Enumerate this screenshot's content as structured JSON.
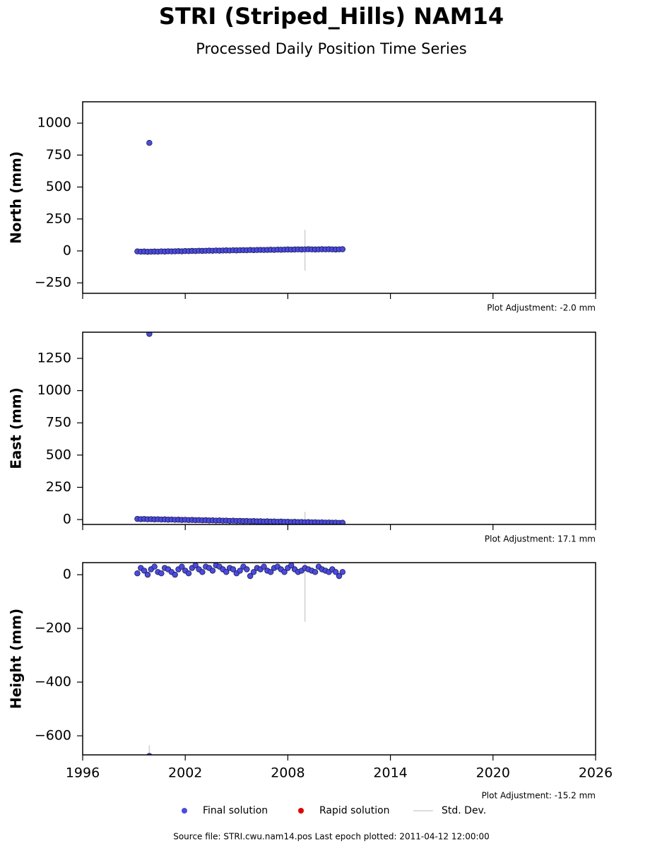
{
  "figure": {
    "title": "STRI (Striped_Hills) NAM14",
    "subtitle": "Processed Daily Position Time Series",
    "legend": [
      {
        "label": "Final solution",
        "color": "#4b4be0",
        "marker": "dot"
      },
      {
        "label": "Rapid solution",
        "color": "#e00000",
        "marker": "dot"
      },
      {
        "label": "Std. Dev.",
        "color": "#d0d0d0",
        "marker": "line"
      }
    ],
    "source": "Source file: STRI.cwu.nam14.pos  Last epoch plotted: 2011-04-12 12:00:00"
  },
  "chart_data": [
    {
      "type": "scatter",
      "ylabel": "North (mm)",
      "annotation": "Plot Adjustment: -2.0 mm",
      "xlim": [
        1996,
        2026
      ],
      "xticks": [
        1996,
        2002,
        2008,
        2014,
        2020,
        2026
      ],
      "show_xtick_labels": false,
      "ylim": [
        -332,
        1167
      ],
      "yticks": [
        {
          "value": -250,
          "label": "−250"
        },
        0,
        250,
        500,
        750,
        1000
      ],
      "series": [
        {
          "color": "#4b4be0",
          "edge": "#1a1a50",
          "x": [
            1999.2,
            1999.4,
            1999.6,
            1999.8,
            2000,
            2000.2,
            2000.4,
            2000.6,
            2000.8,
            2001,
            2001.2,
            2001.4,
            2001.6,
            2001.8,
            2002,
            2002.2,
            2002.4,
            2002.6,
            2002.8,
            2003,
            2003.2,
            2003.4,
            2003.6,
            2003.8,
            2004,
            2004.2,
            2004.4,
            2004.6,
            2004.8,
            2005,
            2005.2,
            2005.4,
            2005.6,
            2005.8,
            2006,
            2006.2,
            2006.4,
            2006.6,
            2006.8,
            2007,
            2007.2,
            2007.4,
            2007.6,
            2007.8,
            2008,
            2008.2,
            2008.4,
            2008.6,
            2008.8,
            2009,
            2009.2,
            2009.4,
            2009.6,
            2009.8,
            2010,
            2010.2,
            2010.4,
            2010.6,
            2010.8,
            2011,
            2011.2,
            1999.9
          ],
          "values": [
            -4,
            -6,
            -5,
            -7,
            -6,
            -5,
            -6,
            -4,
            -5,
            -3,
            -4,
            -3,
            -2,
            -3,
            -1,
            -2,
            0,
            -1,
            1,
            0,
            1,
            2,
            1,
            3,
            2,
            3,
            4,
            3,
            5,
            4,
            5,
            6,
            5,
            7,
            6,
            7,
            8,
            7,
            8,
            9,
            8,
            10,
            9,
            10,
            11,
            10,
            11,
            12,
            11,
            12,
            13,
            12,
            11,
            12,
            13,
            12,
            13,
            12,
            11,
            12,
            13,
            845
          ]
        }
      ],
      "stddev": {
        "color": "#d0d0d0",
        "x": [
          2009
        ],
        "values": [
          5
        ],
        "errors": [
          160
        ]
      }
    },
    {
      "type": "scatter",
      "ylabel": "East (mm)",
      "annotation": "Plot Adjustment: 17.1 mm",
      "xlim": [
        1996,
        2026
      ],
      "xticks": [
        1996,
        2002,
        2008,
        2014,
        2020,
        2026
      ],
      "show_xtick_labels": false,
      "ylim": [
        -38,
        1453
      ],
      "yticks": [
        0,
        250,
        500,
        750,
        1000,
        1250
      ],
      "series": [
        {
          "color": "#4b4be0",
          "edge": "#1a1a50",
          "x": [
            1999.2,
            1999.4,
            1999.6,
            1999.8,
            2000,
            2000.2,
            2000.4,
            2000.6,
            2000.8,
            2001,
            2001.2,
            2001.4,
            2001.6,
            2001.8,
            2002,
            2002.2,
            2002.4,
            2002.6,
            2002.8,
            2003,
            2003.2,
            2003.4,
            2003.6,
            2003.8,
            2004,
            2004.2,
            2004.4,
            2004.6,
            2004.8,
            2005,
            2005.2,
            2005.4,
            2005.6,
            2005.8,
            2006,
            2006.2,
            2006.4,
            2006.6,
            2006.8,
            2007,
            2007.2,
            2007.4,
            2007.6,
            2007.8,
            2008,
            2008.2,
            2008.4,
            2008.6,
            2008.8,
            2009,
            2009.2,
            2009.4,
            2009.6,
            2009.8,
            2010,
            2010.2,
            2010.4,
            2010.6,
            2010.8,
            2011,
            2011.2,
            1999.9
          ],
          "values": [
            5,
            3,
            4,
            2,
            3,
            1,
            2,
            0,
            1,
            -1,
            0,
            -2,
            -1,
            -3,
            -2,
            -4,
            -3,
            -5,
            -4,
            -6,
            -5,
            -7,
            -6,
            -8,
            -7,
            -9,
            -8,
            -10,
            -9,
            -11,
            -10,
            -12,
            -11,
            -13,
            -12,
            -14,
            -13,
            -15,
            -14,
            -16,
            -15,
            -17,
            -16,
            -18,
            -17,
            -19,
            -18,
            -20,
            -19,
            -21,
            -20,
            -22,
            -21,
            -23,
            -22,
            -24,
            -23,
            -25,
            -24,
            -26,
            -25,
            1440
          ]
        }
      ],
      "stddev": {
        "color": "#d0d0d0",
        "x": [
          2009
        ],
        "values": [
          -20
        ],
        "errors": [
          80
        ]
      }
    },
    {
      "type": "scatter",
      "ylabel": "Height (mm)",
      "annotation": "Plot Adjustment: -15.2 mm",
      "xlim": [
        1996,
        2026
      ],
      "xticks": [
        1996,
        2002,
        2008,
        2014,
        2020,
        2026
      ],
      "show_xtick_labels": true,
      "ylim": [
        -671,
        45
      ],
      "yticks": [
        {
          "value": -600,
          "label": "−600"
        },
        {
          "value": -400,
          "label": "−400"
        },
        {
          "value": -200,
          "label": "−200"
        },
        0
      ],
      "series": [
        {
          "color": "#4b4be0",
          "edge": "#1a1a50",
          "x": [
            1999.2,
            1999.4,
            1999.6,
            1999.8,
            2000,
            2000.2,
            2000.4,
            2000.6,
            2000.8,
            2001,
            2001.2,
            2001.4,
            2001.6,
            2001.8,
            2002,
            2002.2,
            2002.4,
            2002.6,
            2002.8,
            2003,
            2003.2,
            2003.4,
            2003.6,
            2003.8,
            2004,
            2004.2,
            2004.4,
            2004.6,
            2004.8,
            2005,
            2005.2,
            2005.4,
            2005.6,
            2005.8,
            2006,
            2006.2,
            2006.4,
            2006.6,
            2006.8,
            2007,
            2007.2,
            2007.4,
            2007.6,
            2007.8,
            2008,
            2008.2,
            2008.4,
            2008.6,
            2008.8,
            2009,
            2009.2,
            2009.4,
            2009.6,
            2009.8,
            2010,
            2010.2,
            2010.4,
            2010.6,
            2010.8,
            2011,
            2011.2,
            1999.9
          ],
          "values": [
            5,
            25,
            15,
            0,
            20,
            30,
            10,
            5,
            25,
            20,
            10,
            0,
            20,
            30,
            15,
            5,
            25,
            35,
            20,
            10,
            30,
            25,
            15,
            35,
            30,
            20,
            10,
            25,
            20,
            5,
            15,
            30,
            20,
            -5,
            10,
            25,
            20,
            30,
            15,
            10,
            25,
            30,
            20,
            10,
            25,
            35,
            20,
            10,
            15,
            25,
            20,
            15,
            10,
            30,
            20,
            15,
            10,
            20,
            10,
            -5,
            10,
            -675
          ]
        }
      ],
      "stddev": {
        "color": "#d0d0d0",
        "x": [
          2009,
          1999.9
        ],
        "values": [
          10,
          -675
        ],
        "errors": [
          185,
          40
        ]
      }
    }
  ]
}
